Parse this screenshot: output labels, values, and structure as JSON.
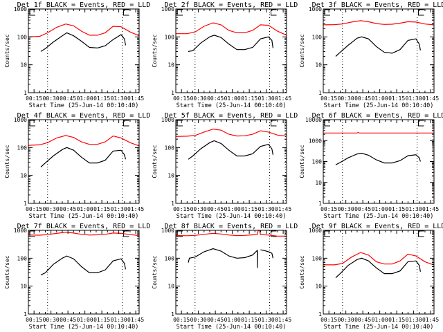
{
  "figure": {
    "x_ticks": [
      "00:15",
      "00:30",
      "00:45",
      "01:00",
      "01:15",
      "01:30",
      "01:45"
    ],
    "x_label": "Start Time (25-Jun-14 00:10:40)",
    "y_label": "Counts/sec",
    "event_color": "#000000",
    "lld_color": "#ff0000",
    "vline_times_min": [
      27,
      93,
      107
    ]
  },
  "chart_data": [
    {
      "type": "line",
      "title": "Det 1f BLACK = Events, RED = LLD",
      "xlabel": "Start Time (25-Jun-14 00:10:40)",
      "ylabel": "Counts/sec",
      "yscale": "log",
      "ylim": [
        1,
        1000
      ],
      "y_ticks": [
        "1",
        "10",
        "100",
        "1000"
      ],
      "xlim_min": [
        10,
        108
      ],
      "series": [
        {
          "name": "LLD",
          "color": "#ff0000",
          "x": [
            10,
            20,
            27,
            35,
            43,
            50,
            57,
            64,
            71,
            78,
            85,
            92,
            100,
            108
          ],
          "y": [
            100,
            105,
            140,
            220,
            290,
            250,
            160,
            115,
            115,
            140,
            240,
            230,
            150,
            110
          ]
        },
        {
          "name": "Events",
          "color": "#000000",
          "x": [
            21,
            25,
            32,
            40,
            44,
            50,
            57,
            64,
            71,
            78,
            85,
            92,
            95,
            96
          ],
          "y": [
            30,
            38,
            65,
            110,
            140,
            110,
            70,
            42,
            40,
            48,
            80,
            120,
            85,
            50
          ]
        }
      ]
    },
    {
      "type": "line",
      "title": "Det 2f BLACK = Events, RED = LLD",
      "xlabel": "Start Time (25-Jun-14 00:10:40)",
      "ylabel": "Counts/sec",
      "yscale": "log",
      "ylim": [
        1,
        1000
      ],
      "y_ticks": [
        "1",
        "10",
        "100",
        "1000"
      ],
      "xlim_min": [
        10,
        108
      ],
      "series": [
        {
          "name": "LLD",
          "color": "#ff0000",
          "x": [
            10,
            20,
            27,
            35,
            43,
            50,
            57,
            64,
            71,
            78,
            85,
            92,
            100,
            108
          ],
          "y": [
            130,
            130,
            150,
            240,
            320,
            270,
            170,
            140,
            140,
            170,
            270,
            260,
            160,
            115
          ]
        },
        {
          "name": "Events",
          "color": "#000000",
          "x": [
            21,
            25,
            32,
            40,
            44,
            50,
            57,
            64,
            71,
            78,
            85,
            92,
            95,
            96
          ],
          "y": [
            30,
            32,
            60,
            100,
            115,
            95,
            55,
            35,
            35,
            42,
            85,
            100,
            75,
            40
          ]
        }
      ]
    },
    {
      "type": "line",
      "title": "Det 3f BLACK = Events, RED = LLD",
      "xlabel": "Start Time (25-Jun-14 00:10:40)",
      "ylabel": "Counts/sec",
      "yscale": "log",
      "ylim": [
        1,
        1000
      ],
      "y_ticks": [
        "1",
        "10",
        "100",
        "1000"
      ],
      "xlim_min": [
        10,
        108
      ],
      "series": [
        {
          "name": "LLD",
          "color": "#ff0000",
          "x": [
            10,
            20,
            27,
            35,
            43,
            50,
            57,
            64,
            71,
            78,
            85,
            92,
            100,
            108
          ],
          "y": [
            270,
            275,
            290,
            340,
            380,
            350,
            300,
            280,
            285,
            310,
            350,
            340,
            290,
            270
          ]
        },
        {
          "name": "Events",
          "color": "#000000",
          "x": [
            21,
            25,
            32,
            40,
            44,
            50,
            57,
            64,
            71,
            78,
            85,
            92,
            95,
            96
          ],
          "y": [
            20,
            28,
            50,
            90,
            100,
            85,
            45,
            28,
            26,
            35,
            75,
            85,
            55,
            33
          ]
        }
      ]
    },
    {
      "type": "line",
      "title": "Det 4f BLACK = Events, RED = LLD",
      "xlabel": "Start Time (25-Jun-14 00:10:40)",
      "ylabel": "Counts/sec",
      "yscale": "log",
      "ylim": [
        1,
        1000
      ],
      "y_ticks": [
        "1",
        "10",
        "100",
        "1000"
      ],
      "xlim_min": [
        10,
        108
      ],
      "series": [
        {
          "name": "LLD",
          "color": "#ff0000",
          "x": [
            10,
            20,
            27,
            35,
            43,
            50,
            57,
            64,
            71,
            78,
            85,
            92,
            100,
            108
          ],
          "y": [
            120,
            125,
            150,
            220,
            270,
            230,
            160,
            130,
            130,
            160,
            260,
            220,
            150,
            115
          ]
        },
        {
          "name": "Events",
          "color": "#000000",
          "x": [
            21,
            25,
            32,
            40,
            44,
            50,
            57,
            64,
            71,
            78,
            85,
            92,
            95,
            96
          ],
          "y": [
            20,
            28,
            50,
            85,
            100,
            80,
            45,
            28,
            28,
            35,
            75,
            80,
            55,
            38
          ]
        }
      ]
    },
    {
      "type": "line",
      "title": "Det 5f BLACK = Events, RED = LLD",
      "xlabel": "Start Time (25-Jun-14 00:10:40)",
      "ylabel": "Counts/sec",
      "yscale": "log",
      "ylim": [
        1,
        1000
      ],
      "y_ticks": [
        "1",
        "10",
        "100",
        "1000"
      ],
      "xlim_min": [
        10,
        108
      ],
      "series": [
        {
          "name": "LLD",
          "color": "#ff0000",
          "x": [
            10,
            20,
            27,
            35,
            43,
            50,
            57,
            64,
            71,
            78,
            85,
            92,
            100,
            108
          ],
          "y": [
            250,
            255,
            270,
            360,
            460,
            420,
            300,
            260,
            265,
            300,
            400,
            360,
            280,
            255
          ]
        },
        {
          "name": "Events",
          "color": "#000000",
          "x": [
            21,
            25,
            32,
            40,
            44,
            50,
            57,
            64,
            71,
            78,
            85,
            92,
            95,
            96
          ],
          "y": [
            38,
            50,
            90,
            150,
            175,
            140,
            80,
            50,
            50,
            60,
            110,
            130,
            90,
            55
          ]
        }
      ]
    },
    {
      "type": "line",
      "title": "Det 6f BLACK = Events, RED = LLD",
      "xlabel": "Start Time (25-Jun-14 00:10:40)",
      "ylabel": "Counts/sec",
      "yscale": "log",
      "ylim": [
        1,
        10000
      ],
      "y_ticks": [
        "1",
        "10",
        "100",
        "1000",
        "10000"
      ],
      "xlim_min": [
        10,
        108
      ],
      "series": [
        {
          "name": "LLD",
          "color": "#ff0000",
          "x": [
            10,
            40,
            41,
            42,
            108
          ],
          "y": [
            2300,
            2300,
            2450,
            2300,
            2300
          ]
        },
        {
          "name": "Events",
          "color": "#000000",
          "x": [
            21,
            25,
            32,
            40,
            44,
            50,
            57,
            64,
            71,
            78,
            85,
            92,
            95,
            96
          ],
          "y": [
            70,
            90,
            150,
            230,
            250,
            200,
            120,
            85,
            85,
            110,
            190,
            210,
            150,
            100
          ]
        }
      ]
    },
    {
      "type": "line",
      "title": "Det 7f BLACK = Events, RED = LLD",
      "xlabel": "Start Time (25-Jun-14 00:10:40)",
      "ylabel": "Counts/sec",
      "yscale": "log",
      "ylim": [
        1,
        1000
      ],
      "y_ticks": [
        "1",
        "10",
        "100",
        "1000"
      ],
      "xlim_min": [
        10,
        108
      ],
      "series": [
        {
          "name": "LLD",
          "color": "#ff0000",
          "x": [
            10,
            20,
            27,
            35,
            43,
            50,
            57,
            64,
            71,
            78,
            85,
            92,
            100,
            108
          ],
          "y": [
            680,
            670,
            700,
            780,
            850,
            800,
            720,
            680,
            690,
            720,
            800,
            780,
            700,
            650
          ]
        },
        {
          "name": "Events",
          "color": "#000000",
          "x": [
            21,
            25,
            32,
            40,
            44,
            50,
            57,
            64,
            71,
            78,
            85,
            92,
            95,
            96
          ],
          "y": [
            25,
            30,
            60,
            100,
            120,
            95,
            50,
            30,
            30,
            38,
            80,
            95,
            65,
            40
          ]
        }
      ]
    },
    {
      "type": "line",
      "title": "Det 8f BLACK = Events, RED = LLD",
      "xlabel": "Start Time (25-Jun-14 00:10:40)",
      "ylabel": "Counts/sec",
      "yscale": "log",
      "ylim": [
        1,
        1000
      ],
      "y_ticks": [
        "1",
        "10",
        "100",
        "1000"
      ],
      "xlim_min": [
        10,
        108
      ],
      "series": [
        {
          "name": "LLD",
          "color": "#ff0000",
          "x": [
            10,
            20,
            27,
            35,
            43,
            50,
            57,
            64,
            71,
            78,
            82,
            83,
            84,
            85,
            92,
            100,
            108
          ],
          "y": [
            650,
            640,
            660,
            720,
            780,
            740,
            680,
            650,
            660,
            690,
            700,
            1000,
            1000,
            700,
            680,
            620,
            620
          ]
        },
        {
          "name": "Events",
          "color": "#000000",
          "x": [
            21,
            22,
            27,
            35,
            43,
            50,
            57,
            64,
            71,
            78,
            82,
            82.1,
            82.2,
            null,
            85,
            88,
            92,
            95,
            96
          ],
          "y": [
            70,
            100,
            110,
            170,
            220,
            180,
            120,
            100,
            105,
            130,
            190,
            45,
            190,
            null,
            200,
            190,
            170,
            150,
            100
          ]
        }
      ]
    },
    {
      "type": "line",
      "title": "Det 9f BLACK = Events, RED = LLD",
      "xlabel": "Start Time (25-Jun-14 00:10:40)",
      "ylabel": "Counts/sec",
      "yscale": "log",
      "ylim": [
        1,
        1000
      ],
      "y_ticks": [
        "1",
        "10",
        "100",
        "1000"
      ],
      "xlim_min": [
        10,
        108
      ],
      "series": [
        {
          "name": "LLD",
          "color": "#ff0000",
          "x": [
            10,
            20,
            27,
            35,
            43,
            50,
            57,
            64,
            71,
            78,
            85,
            92,
            100,
            108
          ],
          "y": [
            58,
            58,
            65,
            110,
            160,
            130,
            75,
            62,
            62,
            80,
            140,
            120,
            75,
            57
          ]
        },
        {
          "name": "Events",
          "color": "#000000",
          "x": [
            21,
            25,
            32,
            40,
            44,
            50,
            57,
            64,
            71,
            78,
            85,
            92,
            95,
            96
          ],
          "y": [
            20,
            28,
            55,
            90,
            100,
            80,
            45,
            28,
            28,
            35,
            75,
            80,
            55,
            33
          ]
        }
      ]
    }
  ]
}
